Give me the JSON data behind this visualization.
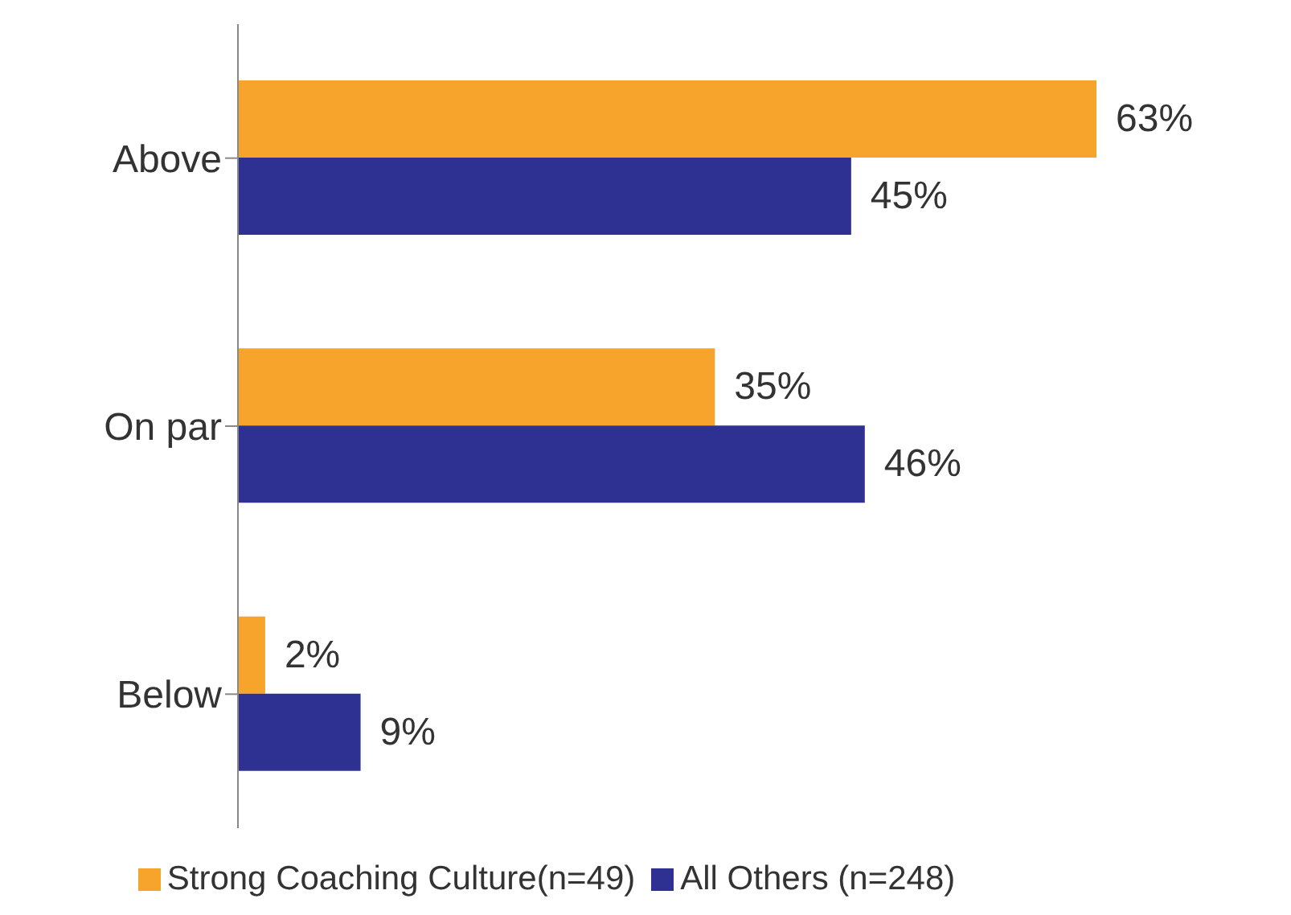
{
  "chart_data": {
    "type": "bar",
    "orientation": "horizontal",
    "categories": [
      "Above",
      "On par",
      "Below"
    ],
    "series": [
      {
        "name": "Strong Coaching Culture(n=49)",
        "color": "#f7a42c",
        "values": [
          63,
          35,
          2
        ],
        "value_labels": [
          "63%",
          "35%",
          "2%"
        ]
      },
      {
        "name": "All Others (n=248)",
        "color": "#2e3192",
        "values": [
          45,
          46,
          9
        ],
        "value_labels": [
          "45%",
          "46%",
          "9%"
        ]
      }
    ],
    "tick_labels": "y",
    "legend": "bottom"
  }
}
